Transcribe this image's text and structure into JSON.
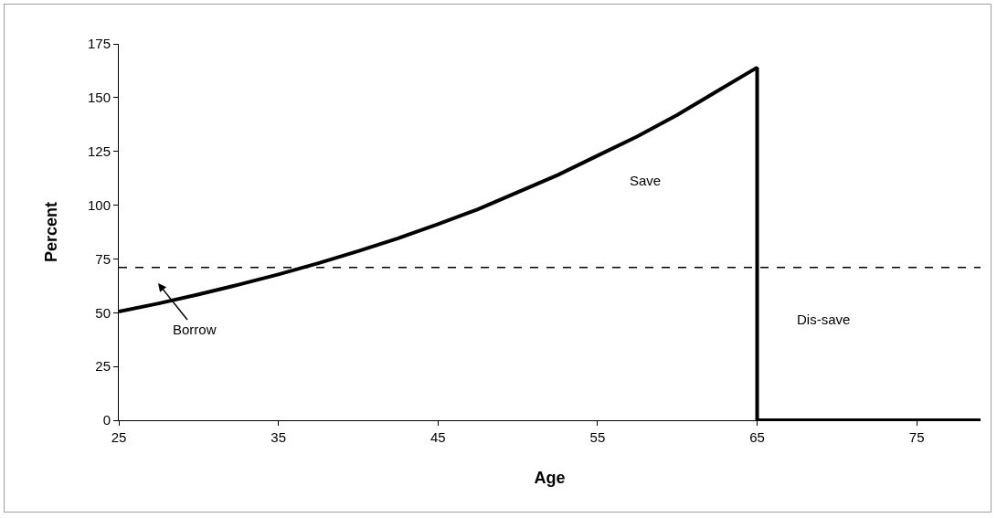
{
  "chart_data": {
    "type": "line",
    "xlabel": "Age",
    "ylabel": "Percent",
    "x": [
      25,
      27.5,
      30,
      32.5,
      35,
      37.5,
      40,
      42.5,
      45,
      47.5,
      50,
      52.5,
      55,
      57.5,
      60,
      62.5,
      65,
      65,
      79
    ],
    "series": [
      {
        "color": "#000000",
        "values": [
          50.5,
          54.3,
          58.5,
          63,
          67.8,
          73,
          78.6,
          84.6,
          91.2,
          98.1,
          106,
          114,
          123,
          132,
          142,
          153,
          164,
          0,
          0
        ]
      }
    ],
    "xlim": [
      25,
      79
    ],
    "xticks": [
      25,
      35,
      45,
      55,
      65,
      75
    ],
    "ylim": [
      0,
      175
    ],
    "yticks": [
      0,
      25,
      50,
      75,
      100,
      125,
      150,
      175
    ],
    "ref_lines": [
      {
        "axis": "y",
        "value": 71,
        "label": null,
        "color": "#000000",
        "line_style": "dashed"
      }
    ],
    "annotations": [
      "Borrow",
      "Save",
      "Dis-save"
    ]
  }
}
